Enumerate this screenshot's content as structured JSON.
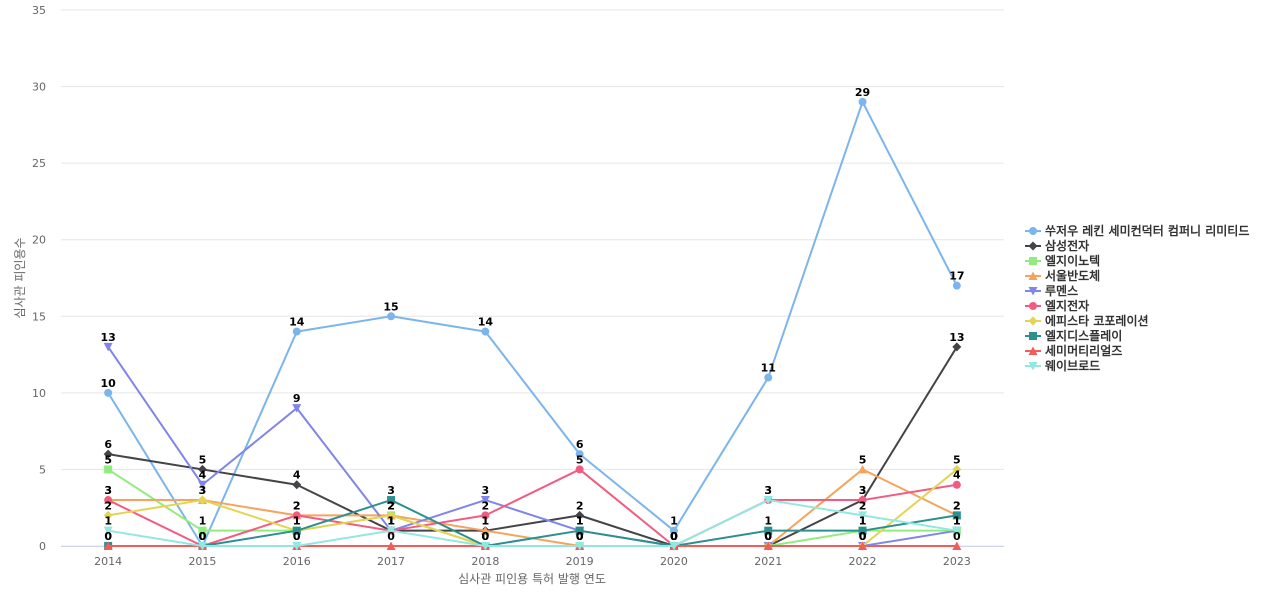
{
  "chart_data": {
    "type": "line",
    "title": "",
    "xlabel": "심사관 피인용 특허 발행 연도",
    "ylabel": "심사관 피인용수",
    "ylim": [
      0,
      35
    ],
    "yticks": [
      0,
      5,
      10,
      15,
      20,
      25,
      30,
      35
    ],
    "grid": true,
    "legend_position": "right",
    "categories": [
      "2014",
      "2015",
      "2016",
      "2017",
      "2018",
      "2019",
      "2020",
      "2021",
      "2022",
      "2023"
    ],
    "series": [
      {
        "name": "쑤저우 레킨 세미컨덕터 컴퍼니 리미티드",
        "color": "#7cb5ec",
        "marker": "circle",
        "values": [
          10,
          0,
          14,
          15,
          14,
          6,
          1,
          11,
          29,
          17
        ]
      },
      {
        "name": "삼성전자",
        "color": "#434348",
        "marker": "diamond",
        "values": [
          6,
          5,
          4,
          1,
          1,
          2,
          0,
          0,
          3,
          13
        ]
      },
      {
        "name": "엘지이노텍",
        "color": "#90ed7d",
        "marker": "square",
        "values": [
          5,
          1,
          1,
          2,
          0,
          0,
          0,
          0,
          1,
          1
        ]
      },
      {
        "name": "서울반도체",
        "color": "#f7a35c",
        "marker": "triangle",
        "values": [
          3,
          3,
          2,
          2,
          1,
          0,
          0,
          0,
          5,
          2
        ]
      },
      {
        "name": "루멘스",
        "color": "#8085e9",
        "marker": "triangle-down",
        "values": [
          13,
          4,
          9,
          1,
          3,
          1,
          0,
          0,
          0,
          1
        ]
      },
      {
        "name": "엘지전자",
        "color": "#f15c80",
        "marker": "circle",
        "values": [
          3,
          0,
          2,
          1,
          2,
          5,
          0,
          3,
          3,
          4
        ]
      },
      {
        "name": "에피스타 코포레이션",
        "color": "#e4d354",
        "marker": "diamond",
        "values": [
          2,
          3,
          1,
          2,
          0,
          0,
          0,
          0,
          0,
          5
        ]
      },
      {
        "name": "엘지디스플레이",
        "color": "#2b908f",
        "marker": "square",
        "values": [
          0,
          0,
          1,
          3,
          0,
          1,
          0,
          1,
          1,
          2
        ]
      },
      {
        "name": "세미머티리얼즈",
        "color": "#f45b5b",
        "marker": "triangle",
        "values": [
          0,
          0,
          0,
          0,
          0,
          0,
          0,
          0,
          0,
          0
        ]
      },
      {
        "name": "웨이브로드",
        "color": "#91e8e1",
        "marker": "triangle-down",
        "values": [
          1,
          0,
          0,
          1,
          0,
          0,
          0,
          3,
          2,
          1
        ]
      }
    ]
  }
}
